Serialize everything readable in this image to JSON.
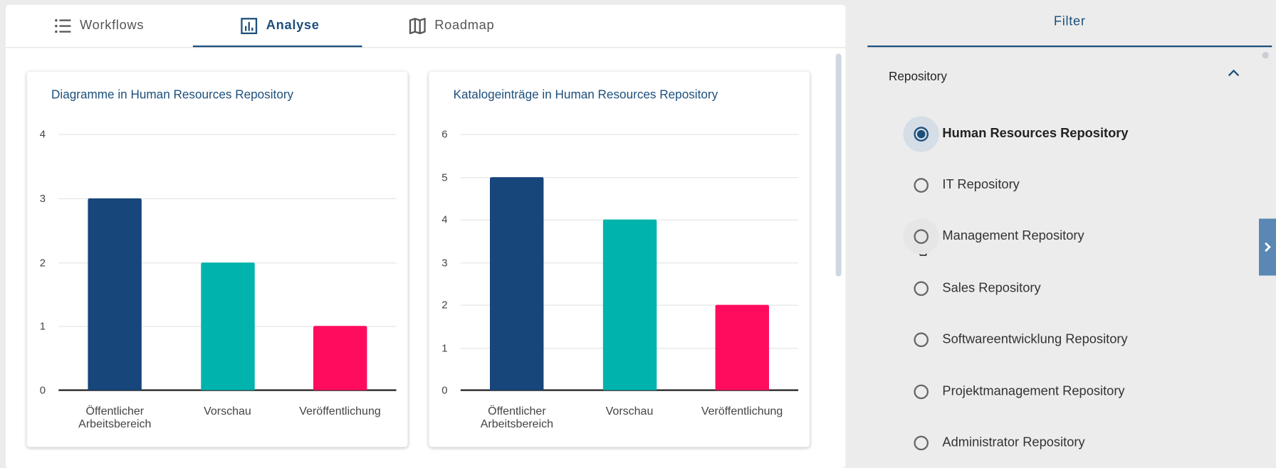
{
  "tabs": [
    "Workflows",
    "Analyse",
    "Roadmap"
  ],
  "chart_data": [
    {
      "type": "bar",
      "title": "Diagramme in Human Resources Repository",
      "categories": [
        "Öffentlicher Arbeitsbereich",
        "Vorschau",
        "Veröffentlichung"
      ],
      "values": [
        3,
        2,
        1
      ],
      "colors": [
        "#16467a",
        "#00b3ad",
        "#ff0c5f"
      ],
      "ylim": [
        0,
        4
      ],
      "yticks": [
        0,
        1,
        2,
        3,
        4
      ],
      "grid": true
    },
    {
      "type": "bar",
      "title": "Katalogeinträge in Human Resources Repository",
      "categories": [
        "Öffentlicher Arbeitsbereich",
        "Vorschau",
        "Veröffentlichung"
      ],
      "values": [
        5,
        4,
        2
      ],
      "colors": [
        "#16467a",
        "#00b3ad",
        "#ff0c5f"
      ],
      "ylim": [
        0,
        6
      ],
      "yticks": [
        0,
        1,
        2,
        3,
        4,
        5,
        6
      ],
      "grid": true
    }
  ],
  "filter": {
    "title": "Filter",
    "section": "Repository",
    "options": [
      "Human Resources Repository",
      "IT Repository",
      "Management Repository",
      "Sales Repository",
      "Softwareentwicklung Repository",
      "Projektmanagement Repository",
      "Administrator Repository"
    ]
  }
}
